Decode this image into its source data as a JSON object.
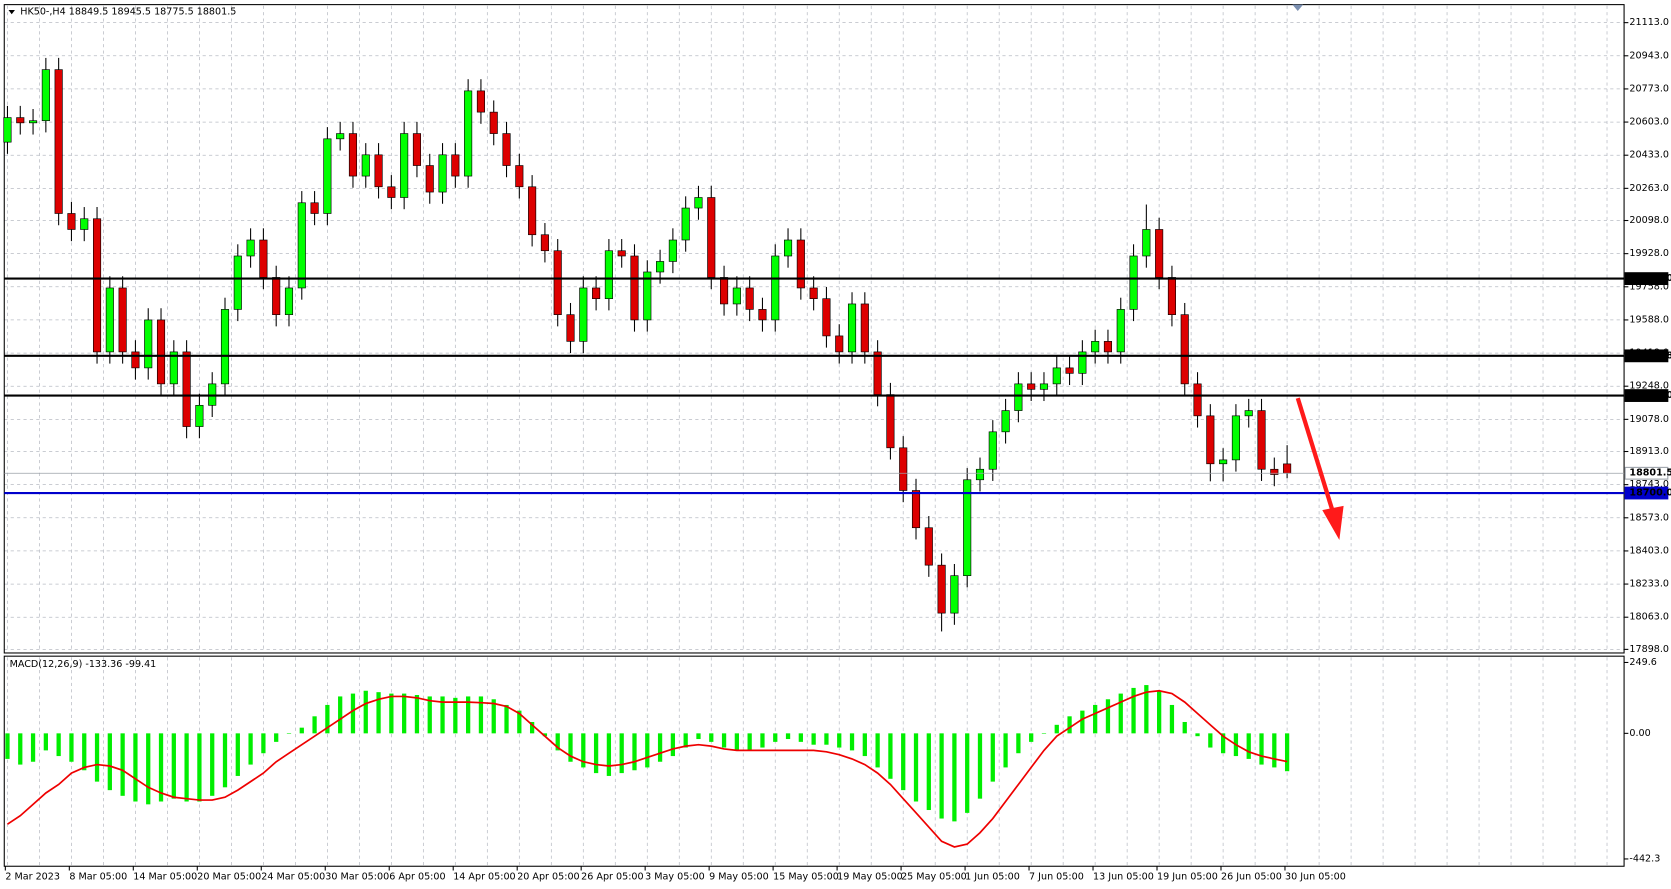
{
  "chart_data": [
    {
      "type": "candlestick",
      "title": "HK50-,H4  18849.5 18945.5 18775.5 18801.5",
      "open": [
        20500,
        20626,
        20599,
        20610,
        20872,
        20134,
        20052,
        20107,
        19424,
        19752,
        19424,
        19342,
        19588,
        19260,
        19424,
        19041,
        19150,
        19260,
        19642,
        19916,
        19998,
        19806,
        19615,
        19752,
        20189,
        20134,
        20517,
        20544,
        20326,
        20435,
        20271,
        20216,
        20544,
        20380,
        20244,
        20435,
        20326,
        20763,
        20654,
        20544,
        20380,
        20271,
        20025,
        19943,
        19615,
        19478,
        19752,
        19697,
        19943,
        19916,
        19588,
        19834,
        19888,
        19998,
        20162,
        20216,
        19806,
        19670,
        19752,
        19642,
        19588,
        19916,
        19998,
        19752,
        19697,
        19506,
        19424,
        19670,
        19424,
        19205,
        18932,
        18713,
        18522,
        18330,
        18084,
        18276,
        18768,
        18822,
        19014,
        19123,
        19260,
        19232,
        19260,
        19342,
        19314,
        19424,
        19478,
        19424,
        19642,
        19916,
        20052,
        19806,
        19615,
        19260,
        19096,
        18850,
        18870,
        19096,
        19123,
        18822,
        18849.5
      ],
      "high": [
        20686,
        20686,
        20670,
        20932,
        20932,
        20194,
        20167,
        20167,
        19812,
        19812,
        19484,
        19648,
        19648,
        19484,
        19484,
        19210,
        19320,
        19702,
        19976,
        20058,
        20058,
        19866,
        19812,
        20249,
        20249,
        20577,
        20604,
        20604,
        20495,
        20495,
        20331,
        20604,
        20604,
        20440,
        20495,
        20495,
        20823,
        20823,
        20714,
        20604,
        20440,
        20331,
        20085,
        20003,
        19675,
        19812,
        19812,
        20003,
        20003,
        19976,
        19894,
        19948,
        20058,
        20222,
        20276,
        20276,
        19866,
        19812,
        19812,
        19702,
        19976,
        20058,
        20058,
        19812,
        19757,
        19566,
        19730,
        19730,
        19484,
        19265,
        18992,
        18773,
        18582,
        18390,
        18336,
        18828,
        18882,
        19074,
        19183,
        19320,
        19320,
        19320,
        19402,
        19402,
        19484,
        19538,
        19538,
        19702,
        19976,
        20180,
        20112,
        19866,
        19675,
        19320,
        19156,
        18930,
        19156,
        19183,
        19183,
        18882,
        18945.5
      ],
      "low": [
        20440,
        20539,
        20539,
        20550,
        20074,
        19992,
        19992,
        19364,
        19364,
        19364,
        19282,
        19282,
        19200,
        19200,
        18981,
        18981,
        19090,
        19200,
        19582,
        19856,
        19746,
        19555,
        19555,
        19692,
        20074,
        20074,
        20457,
        20266,
        20266,
        20211,
        20156,
        20156,
        20320,
        20184,
        20184,
        20266,
        20266,
        20594,
        20484,
        20320,
        20211,
        19965,
        19883,
        19555,
        19418,
        19418,
        19637,
        19637,
        19856,
        19528,
        19528,
        19774,
        19828,
        19938,
        20102,
        19746,
        19610,
        19610,
        19582,
        19528,
        19528,
        19856,
        19692,
        19637,
        19446,
        19364,
        19364,
        19364,
        19145,
        18872,
        18653,
        18462,
        18270,
        17990,
        18024,
        18216,
        18708,
        18762,
        18954,
        19063,
        19172,
        19172,
        19200,
        19254,
        19254,
        19364,
        19364,
        19364,
        19582,
        19856,
        19746,
        19555,
        19200,
        19036,
        18760,
        18760,
        18810,
        19036,
        18762,
        18735,
        18775.5
      ],
      "close": [
        20626,
        20599,
        20610,
        20872,
        20134,
        20052,
        20107,
        19424,
        19752,
        19424,
        19342,
        19588,
        19260,
        19424,
        19041,
        19150,
        19260,
        19642,
        19916,
        19998,
        19806,
        19615,
        19752,
        20189,
        20134,
        20517,
        20544,
        20326,
        20435,
        20271,
        20216,
        20544,
        20380,
        20244,
        20435,
        20326,
        20763,
        20654,
        20544,
        20380,
        20271,
        20025,
        19943,
        19615,
        19478,
        19752,
        19697,
        19943,
        19916,
        19588,
        19834,
        19888,
        19998,
        20162,
        20216,
        19806,
        19670,
        19752,
        19642,
        19588,
        19916,
        19998,
        19752,
        19697,
        19506,
        19424,
        19670,
        19424,
        19205,
        18932,
        18713,
        18522,
        18330,
        18084,
        18276,
        18768,
        18822,
        19014,
        19123,
        19260,
        19232,
        19260,
        19342,
        19314,
        19424,
        19478,
        19424,
        19642,
        19916,
        20052,
        19806,
        19615,
        19260,
        19096,
        18850,
        18870,
        19096,
        19123,
        18822,
        18795,
        18801.5
      ],
      "up_color": "#00ff00",
      "down_color": "#dd0000",
      "ylim": [
        17885,
        21200
      ],
      "yticks": [
        {
          "value": 21113,
          "label": "21113.0"
        },
        {
          "value": 20943,
          "label": "20943.0"
        },
        {
          "value": 20773,
          "label": "20773.0"
        },
        {
          "value": 20603,
          "label": "20603.0"
        },
        {
          "value": 20433,
          "label": "20433.0"
        },
        {
          "value": 20263,
          "label": "20263.0"
        },
        {
          "value": 20098,
          "label": "20098.0"
        },
        {
          "value": 19928,
          "label": "19928.0"
        },
        {
          "value": 19758,
          "label": "19758.0"
        },
        {
          "value": 19588,
          "label": "19588.0"
        },
        {
          "value": 19418,
          "label": "19418.0"
        },
        {
          "value": 19248,
          "label": "19248.0"
        },
        {
          "value": 19078,
          "label": "19078.0"
        },
        {
          "value": 18913,
          "label": "18913.0"
        },
        {
          "value": 18743,
          "label": "18743.0"
        },
        {
          "value": 18573,
          "label": "18573.0"
        },
        {
          "value": 18403,
          "label": "18403.0"
        },
        {
          "value": 18233,
          "label": "18233.0"
        },
        {
          "value": 18063,
          "label": "18063.0"
        },
        {
          "value": 17898,
          "label": "17898.0"
        }
      ],
      "grid": true,
      "last_price": {
        "value": 18801.5,
        "label": "18801.5",
        "color": "#9aa0a8"
      },
      "levels": [
        {
          "value": 19800,
          "label": "19800.0",
          "color": "#000000"
        },
        {
          "value": 19403.8,
          "label": "19403.8",
          "color": "#000000"
        },
        {
          "value": 19200,
          "label": "19200.0",
          "color": "#000000"
        },
        {
          "value": 18700,
          "label": "18700.0",
          "color": "#0000cc"
        }
      ]
    },
    {
      "type": "macd",
      "title": "MACD(12,26,9) -133.36 -99.41",
      "categories": [
        "2 Mar 2023",
        null,
        null,
        null,
        null,
        "8 Mar 05:00",
        null,
        null,
        null,
        null,
        "14 Mar 05:00",
        null,
        null,
        null,
        null,
        "20 Mar 05:00",
        null,
        null,
        null,
        null,
        "24 Mar 05:00",
        null,
        null,
        null,
        null,
        "30 Mar 05:00",
        null,
        null,
        null,
        null,
        "6 Apr 05:00",
        null,
        null,
        null,
        null,
        "14 Apr 05:00",
        null,
        null,
        null,
        null,
        "20 Apr 05:00",
        null,
        null,
        null,
        null,
        "26 Apr 05:00",
        null,
        null,
        null,
        null,
        "3 May 05:00",
        null,
        null,
        null,
        null,
        "9 May 05:00",
        null,
        null,
        null,
        null,
        "15 May 05:00",
        null,
        null,
        null,
        null,
        "19 May 05:00",
        null,
        null,
        null,
        null,
        "25 May 05:00",
        null,
        null,
        null,
        null,
        "1 Jun 05:00",
        null,
        null,
        null,
        null,
        "7 Jun 05:00",
        null,
        null,
        null,
        null,
        "13 Jun 05:00",
        null,
        null,
        null,
        null,
        "19 Jun 05:00",
        null,
        null,
        null,
        null,
        "26 Jun 05:00",
        null,
        null,
        null,
        null,
        "30 Jun 05:00"
      ],
      "series": [
        {
          "type": "bar",
          "color": "#00ee00",
          "values": [
            -90,
            -110,
            -100,
            -60,
            -80,
            -100,
            -130,
            -170,
            -200,
            -220,
            -240,
            -250,
            -240,
            -230,
            -240,
            -240,
            -220,
            -190,
            -150,
            -110,
            -70,
            -30,
            0,
            20,
            60,
            100,
            130,
            140,
            150,
            145,
            140,
            140,
            135,
            130,
            130,
            125,
            130,
            130,
            120,
            100,
            80,
            40,
            -10,
            -60,
            -100,
            -120,
            -140,
            -150,
            -140,
            -130,
            -120,
            -100,
            -80,
            -50,
            -20,
            -30,
            -50,
            -60,
            -60,
            -50,
            -30,
            -20,
            -30,
            -40,
            -40,
            -50,
            -60,
            -80,
            -120,
            -160,
            -200,
            -240,
            -270,
            -300,
            -310,
            -280,
            -230,
            -170,
            -120,
            -70,
            -30,
            0,
            30,
            60,
            80,
            100,
            120,
            140,
            160,
            170,
            150,
            100,
            40,
            -10,
            -50,
            -70,
            -80,
            -90,
            -110,
            -120,
            -133.36
          ]
        },
        {
          "type": "line",
          "color": "#ee0000",
          "values": [
            -320,
            -290,
            -250,
            -210,
            -180,
            -140,
            -120,
            -110,
            -115,
            -130,
            -160,
            -190,
            -210,
            -225,
            -230,
            -235,
            -235,
            -225,
            -200,
            -170,
            -140,
            -100,
            -70,
            -40,
            -10,
            20,
            50,
            80,
            105,
            120,
            130,
            130,
            125,
            115,
            110,
            110,
            110,
            108,
            105,
            95,
            70,
            30,
            -10,
            -50,
            -80,
            -100,
            -110,
            -115,
            -110,
            -100,
            -85,
            -70,
            -55,
            -45,
            -40,
            -45,
            -55,
            -60,
            -60,
            -60,
            -60,
            -60,
            -60,
            -60,
            -65,
            -75,
            -90,
            -110,
            -140,
            -180,
            -230,
            -280,
            -330,
            -380,
            -400,
            -390,
            -350,
            -300,
            -240,
            -180,
            -120,
            -60,
            -10,
            20,
            50,
            70,
            90,
            110,
            130,
            145,
            150,
            140,
            110,
            70,
            30,
            -10,
            -40,
            -65,
            -80,
            -90,
            -99.41
          ]
        }
      ],
      "ylim": [
        -468,
        268
      ],
      "yticks": [
        249.6,
        {
          "value": 0,
          "label": "0.00"
        },
        -442.3
      ]
    }
  ]
}
